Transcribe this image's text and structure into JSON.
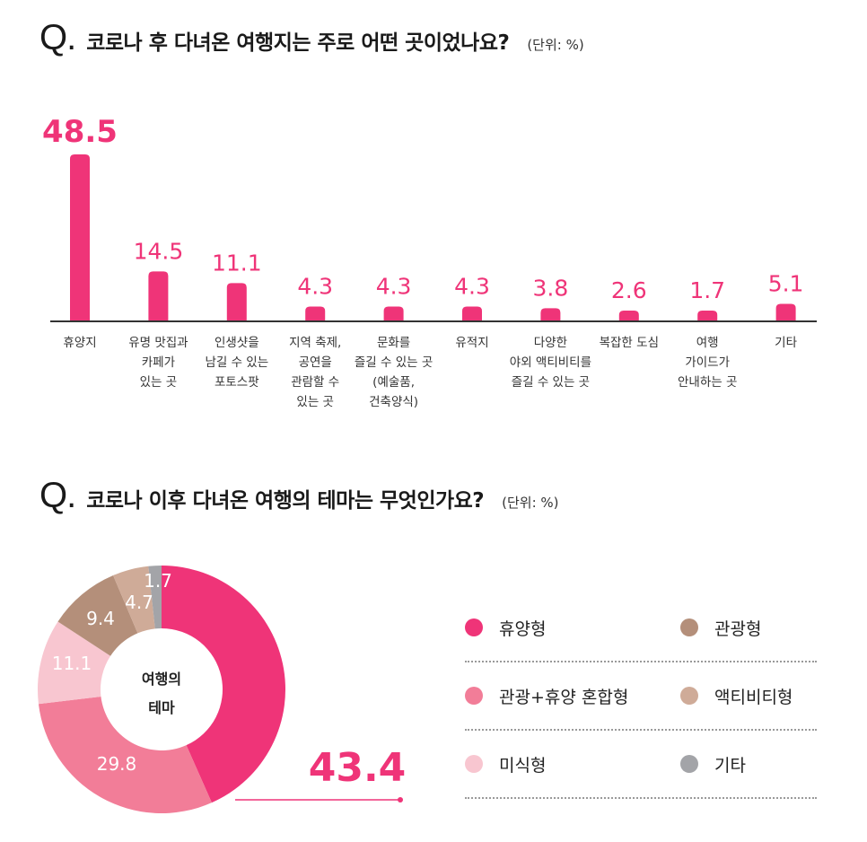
{
  "q1": {
    "q": "Q.",
    "text": "코로나 후 다녀온 여행지는 주로 어떤 곳이었나요?",
    "unit": "(단위: %)"
  },
  "q2": {
    "q": "Q.",
    "text": "코로나 이후 다녀온 여행의 테마는 무엇인가요?",
    "unit": "(단위: %)"
  },
  "colors": {
    "accent": "#ef3478",
    "axis": "#333333",
    "xtick": "#333333"
  },
  "chart_data": [
    {
      "type": "bar",
      "title": "코로나 후 다녀온 여행지는 주로 어떤 곳이었나요?",
      "unit": "%",
      "categories": [
        [
          "휴양지"
        ],
        [
          "유명 맛집과",
          "카페가",
          "있는 곳"
        ],
        [
          "인생샷을",
          "남길 수 있는",
          "포토스팟"
        ],
        [
          "지역 축제,",
          "공연을",
          "관람할 수",
          "있는 곳"
        ],
        [
          "문화를",
          "즐길 수 있는 곳",
          "(예술품,",
          "건축양식)"
        ],
        [
          "유적지"
        ],
        [
          "다양한",
          "야외 액티비티를",
          "즐길 수 있는 곳"
        ],
        [
          "복잡한 도심"
        ],
        [
          "여행",
          "가이드가",
          "안내하는 곳"
        ],
        [
          "기타"
        ]
      ],
      "values": [
        48.5,
        14.5,
        11.1,
        4.3,
        4.3,
        4.3,
        3.8,
        2.6,
        1.7,
        5.1
      ],
      "labels": [
        "48.5",
        "14.5",
        "11.1",
        "4.3",
        "4.3",
        "4.3",
        "3.8",
        "2.6",
        "1.7",
        "5.1"
      ],
      "color": "#ef3478"
    },
    {
      "type": "pie",
      "title": "코로나 이후 다녀온 여행의 테마는 무엇인가요?",
      "center_label": [
        "여행의",
        "테마"
      ],
      "unit": "%",
      "highlight": "43.4",
      "slices": [
        {
          "name": "휴양형",
          "value": 43.4,
          "label": "43.4",
          "color": "#ef3478"
        },
        {
          "name": "관광+휴양 혼합형",
          "value": 29.8,
          "label": "29.8",
          "color": "#f27d98"
        },
        {
          "name": "미식형",
          "value": 11.1,
          "label": "11.1",
          "color": "#f8c6d0"
        },
        {
          "name": "관광형",
          "value": 9.4,
          "label": "9.4",
          "color": "#b48f7a"
        },
        {
          "name": "액티비티형",
          "value": 4.7,
          "label": "4.7",
          "color": "#cfab98"
        },
        {
          "name": "기타",
          "value": 1.7,
          "label": "1.7",
          "color": "#a3a4a8"
        }
      ]
    }
  ],
  "legend": [
    [
      {
        "name": "휴양형",
        "color": "#ef3478"
      },
      {
        "name": "관광형",
        "color": "#b48f7a"
      }
    ],
    [
      {
        "name": "관광+휴양 혼합형",
        "color": "#f27d98"
      },
      {
        "name": "액티비티형",
        "color": "#cfab98"
      }
    ],
    [
      {
        "name": "미식형",
        "color": "#f8c6d0"
      },
      {
        "name": "기타",
        "color": "#a3a4a8"
      }
    ]
  ]
}
